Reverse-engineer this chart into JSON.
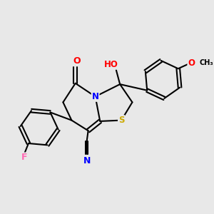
{
  "background_color": "#e8e8e8",
  "bond_color": "#000000",
  "atom_colors": {
    "F": "#ff69b4",
    "N": "#0000ff",
    "O": "#ff0000",
    "S": "#ccaa00",
    "C": "#000000",
    "H": "#808080"
  },
  "bond_width": 1.5,
  "figsize": [
    3.0,
    3.0
  ],
  "dpi": 100
}
